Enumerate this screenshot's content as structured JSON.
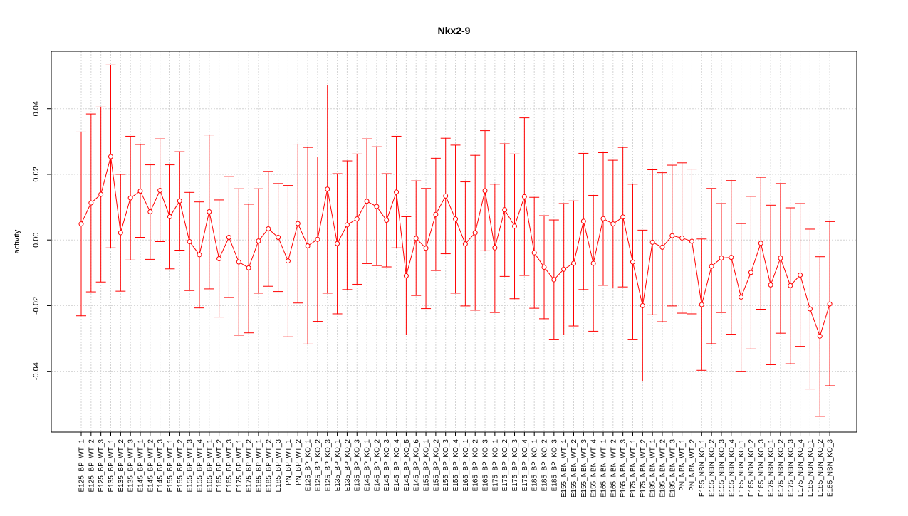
{
  "chart_data": {
    "type": "line",
    "title": "Nkx2-9",
    "xlabel": "",
    "ylabel": "activity",
    "ylim": [
      -0.0585,
      0.0575
    ],
    "yticks": [
      -0.04,
      -0.02,
      0.0,
      0.02,
      0.04
    ],
    "ytick_labels": [
      "-0.04",
      "-0.02",
      "0.00",
      "0.02",
      "0.04"
    ],
    "grid": true,
    "error_bars": true,
    "colors": {
      "series": "#ff0000",
      "grid": "#d3d3d3",
      "axis": "#000000"
    },
    "categories": [
      "E125_BP_WT_1",
      "E125_BP_WT_2",
      "E125_BP_WT_3",
      "E135_BP_WT_1",
      "E135_BP_WT_2",
      "E135_BP_WT_3",
      "E145_BP_WT_1",
      "E145_BP_WT_2",
      "E145_BP_WT_3",
      "E155_BP_WT_1",
      "E155_BP_WT_2",
      "E155_BP_WT_3",
      "E155_BP_WT_4",
      "E165_BP_WT_1",
      "E165_BP_WT_2",
      "E165_BP_WT_3",
      "E175_BP_WT_1",
      "E175_BP_WT_2",
      "E185_BP_WT_1",
      "E185_BP_WT_2",
      "E185_BP_WT_3",
      "PN_BP_WT_1",
      "PN_BP_WT_2",
      "E125_BP_KO_1",
      "E125_BP_KO_2",
      "E125_BP_KO_3",
      "E135_BP_KO_1",
      "E135_BP_KO_2",
      "E135_BP_KO_3",
      "E145_BP_KO_1",
      "E145_BP_KO_2",
      "E145_BP_KO_3",
      "E145_BP_KO_4",
      "E145_BP_KO_5",
      "E145_BP_KO_6",
      "E155_BP_KO_1",
      "E155_BP_KO_2",
      "E155_BP_KO_3",
      "E155_BP_KO_4",
      "E165_BP_KO_1",
      "E165_BP_KO_2",
      "E165_BP_KO_3",
      "E175_BP_KO_1",
      "E175_BP_KO_2",
      "E175_BP_KO_3",
      "E175_BP_KO_4",
      "E185_BP_KO_1",
      "E185_BP_KO_2",
      "E185_BP_KO_3",
      "E155_NBN_WT_1",
      "E155_NBN_WT_2",
      "E155_NBN_WT_3",
      "E155_NBN_WT_4",
      "E165_NBN_WT_1",
      "E165_NBN_WT_2",
      "E165_NBN_WT_3",
      "E175_NBN_WT_1",
      "E175_NBN_WT_2",
      "E185_NBN_WT_1",
      "E185_NBN_WT_2",
      "E185_NBN_WT_3",
      "PN_NBN_WT_1",
      "PN_NBN_WT_2",
      "E155_NBN_KO_1",
      "E155_NBN_KO_2",
      "E155_NBN_KO_3",
      "E155_NBN_KO_4",
      "E165_NBN_KO_1",
      "E165_NBN_KO_2",
      "E165_NBN_KO_3",
      "E175_NBN_KO_1",
      "E175_NBN_KO_2",
      "E175_NBN_KO_3",
      "E175_NBN_KO_4",
      "E185_NBN_KO_1",
      "E185_NBN_KO_2",
      "E185_NBN_KO_3"
    ],
    "series": [
      {
        "values": [
          0.0049,
          0.0113,
          0.0139,
          0.0254,
          0.0022,
          0.0128,
          0.0149,
          0.0086,
          0.0151,
          0.0071,
          0.0119,
          -0.0005,
          -0.0045,
          0.0086,
          -0.0057,
          0.0008,
          -0.0067,
          -0.0085,
          -0.0003,
          0.0034,
          0.0008,
          -0.0064,
          0.005,
          -0.0018,
          0.0002,
          0.0155,
          -0.0011,
          0.0046,
          0.0064,
          0.0118,
          0.0102,
          0.006,
          0.0146,
          -0.0109,
          0.0005,
          -0.0025,
          0.0078,
          0.0134,
          0.0064,
          -0.0012,
          0.0022,
          0.015,
          -0.0024,
          0.0092,
          0.0042,
          0.0132,
          -0.0039,
          -0.0083,
          -0.0121,
          -0.0089,
          -0.0071,
          0.0057,
          -0.0071,
          0.0065,
          0.0049,
          0.007,
          -0.0067,
          -0.02,
          -0.0007,
          -0.0022,
          0.0013,
          0.0006,
          -0.0004,
          -0.0197,
          -0.008,
          -0.0055,
          -0.0053,
          -0.0174,
          -0.0099,
          -0.001,
          -0.0137,
          -0.0055,
          -0.0139,
          -0.0107,
          -0.021,
          -0.0293,
          -0.0195
        ],
        "upper": [
          0.0329,
          0.0384,
          0.0405,
          0.0533,
          0.02,
          0.0316,
          0.0291,
          0.0229,
          0.0308,
          0.0229,
          0.0269,
          0.0145,
          0.0116,
          0.032,
          0.0122,
          0.0193,
          0.0156,
          0.0109,
          0.0156,
          0.0209,
          0.0172,
          0.0166,
          0.0292,
          0.0282,
          0.0253,
          0.0472,
          0.0202,
          0.0241,
          0.0262,
          0.0308,
          0.0284,
          0.0202,
          0.0316,
          0.0071,
          0.018,
          0.0157,
          0.0249,
          0.031,
          0.0289,
          0.0177,
          0.0258,
          0.0333,
          0.017,
          0.0293,
          0.0262,
          0.0372,
          0.013,
          0.0074,
          0.0061,
          0.0111,
          0.0119,
          0.0264,
          0.0136,
          0.0266,
          0.0243,
          0.0282,
          0.017,
          0.003,
          0.0214,
          0.0205,
          0.0228,
          0.0235,
          0.0216,
          0.0003,
          0.0157,
          0.0111,
          0.0181,
          0.005,
          0.0133,
          0.0191,
          0.0106,
          0.0172,
          0.0098,
          0.0111,
          0.0033,
          -0.0051,
          0.0056
        ],
        "lower": [
          -0.0231,
          -0.0158,
          -0.0128,
          -0.0024,
          -0.0156,
          -0.0061,
          0.0008,
          -0.0059,
          -0.0005,
          -0.0088,
          -0.0031,
          -0.0154,
          -0.0207,
          -0.0149,
          -0.0235,
          -0.0175,
          -0.029,
          -0.0283,
          -0.0162,
          -0.0141,
          -0.0157,
          -0.0295,
          -0.0192,
          -0.0317,
          -0.0248,
          -0.0162,
          -0.0225,
          -0.0151,
          -0.0135,
          -0.0072,
          -0.0078,
          -0.0082,
          -0.0024,
          -0.0289,
          -0.0169,
          -0.0209,
          -0.0093,
          -0.0042,
          -0.0162,
          -0.0201,
          -0.0214,
          -0.0033,
          -0.0221,
          -0.0111,
          -0.0179,
          -0.0108,
          -0.0208,
          -0.024,
          -0.0304,
          -0.0289,
          -0.0262,
          -0.0151,
          -0.0278,
          -0.0138,
          -0.0146,
          -0.0143,
          -0.0304,
          -0.043,
          -0.0228,
          -0.0249,
          -0.0201,
          -0.0223,
          -0.0225,
          -0.0397,
          -0.0316,
          -0.0221,
          -0.0287,
          -0.04,
          -0.0332,
          -0.0211,
          -0.038,
          -0.0284,
          -0.0377,
          -0.0324,
          -0.0454,
          -0.0537,
          -0.0444
        ]
      }
    ]
  }
}
